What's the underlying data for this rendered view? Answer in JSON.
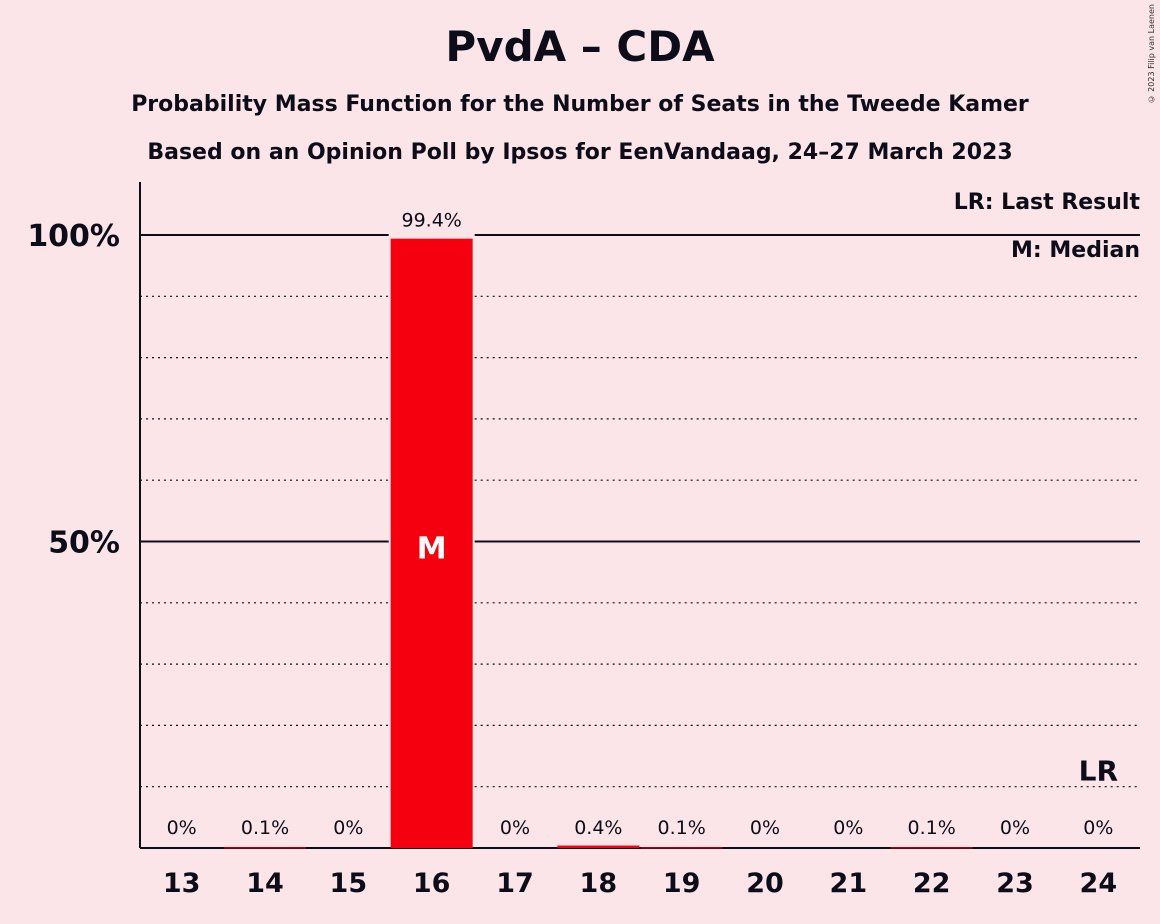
{
  "chart_data": {
    "type": "bar",
    "title": "PvdA – CDA",
    "subtitle_1": "Probability Mass Function for the Number of Seats in the Tweede Kamer",
    "subtitle_2": "Based on an Opinion Poll by Ipsos for EenVandaag, 24–27 March 2023",
    "copyright": "© 2023 Filip van Laenen",
    "categories": [
      "13",
      "14",
      "15",
      "16",
      "17",
      "18",
      "19",
      "20",
      "21",
      "22",
      "23",
      "24"
    ],
    "values": [
      0,
      0.1,
      0,
      99.4,
      0,
      0.4,
      0.1,
      0,
      0,
      0.1,
      0,
      0
    ],
    "value_labels": [
      "0%",
      "0.1%",
      "0%",
      "99.4%",
      "0%",
      "0.4%",
      "0.1%",
      "0%",
      "0%",
      "0.1%",
      "0%",
      "0%"
    ],
    "ylim": [
      0,
      110
    ],
    "yticks": [
      {
        "value": 50,
        "label": "50%"
      },
      {
        "value": 100,
        "label": "100%"
      }
    ],
    "grid": "dotted every 10%, solid at 50% and 100%",
    "median_category": "16",
    "median_mark": "M",
    "last_result_category": "24",
    "last_result_mark": "LR",
    "legend": [
      "LR: Last Result",
      "M: Median"
    ],
    "legend_position": "top-right",
    "bar_color": "#f4000f"
  }
}
